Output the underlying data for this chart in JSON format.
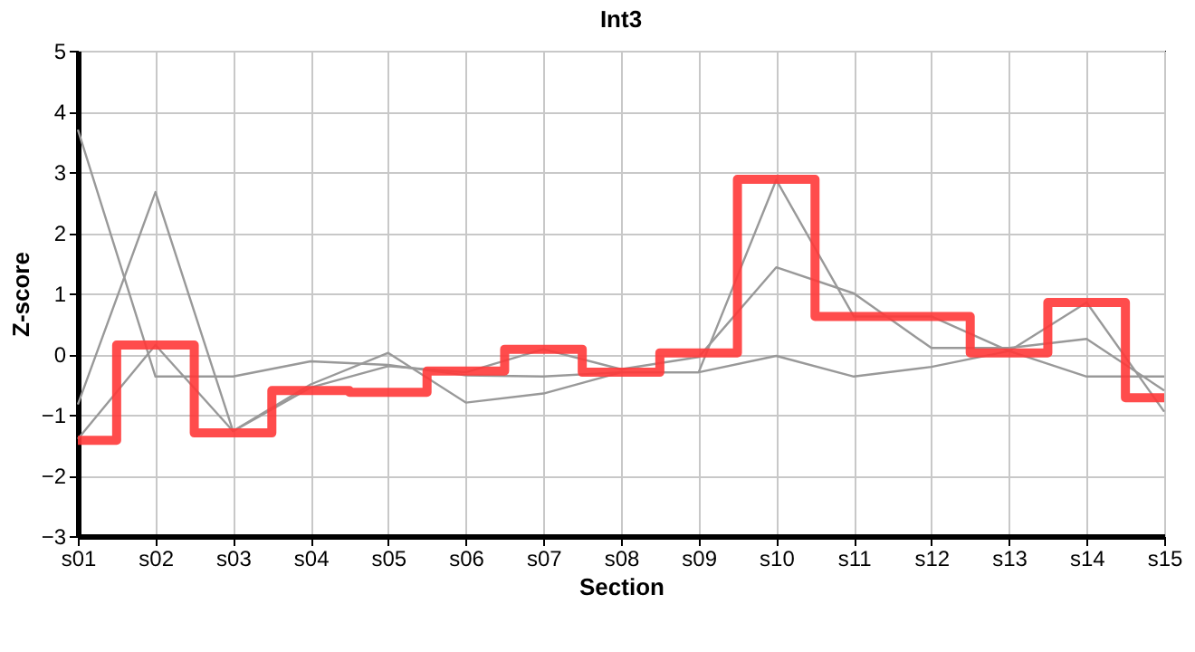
{
  "chart_data": {
    "type": "line",
    "title": "Int3",
    "xlabel": "Section",
    "ylabel": "Z-score",
    "categories": [
      "s01",
      "s02",
      "s03",
      "s04",
      "s05",
      "s06",
      "s07",
      "s08",
      "s09",
      "s10",
      "s11",
      "s12",
      "s13",
      "s14",
      "s15"
    ],
    "series": [
      {
        "color": "#999999",
        "values": [
          3.7,
          -0.37,
          -0.37,
          -0.12,
          -0.18,
          -0.35,
          -0.37,
          -0.3,
          -0.3,
          -0.03,
          -0.37,
          -0.21,
          0.05,
          -0.37,
          -0.37
        ]
      },
      {
        "color": "#999999",
        "values": [
          -0.83,
          2.67,
          -1.27,
          -0.5,
          0.02,
          -0.8,
          -0.65,
          -0.3,
          -0.3,
          2.87,
          0.62,
          0.62,
          0.05,
          0.85,
          -0.95
        ]
      },
      {
        "color": "#999999",
        "values": [
          -1.4,
          0.15,
          -1.27,
          -0.55,
          -0.2,
          -0.3,
          0.08,
          -0.25,
          -0.05,
          1.43,
          1.0,
          0.1,
          0.1,
          0.25,
          -0.6
        ]
      },
      {
        "type": "step",
        "color": "#ff3838",
        "values": [
          -1.42,
          0.15,
          -1.3,
          -0.6,
          -0.63,
          -0.28,
          0.08,
          -0.3,
          0.02,
          2.88,
          0.62,
          0.62,
          0.02,
          0.85,
          -0.72
        ]
      }
    ],
    "ylim": [
      -3,
      5
    ],
    "yticks": [
      -3,
      -2,
      -1,
      0,
      1,
      2,
      3,
      4,
      5
    ],
    "grid": true
  }
}
